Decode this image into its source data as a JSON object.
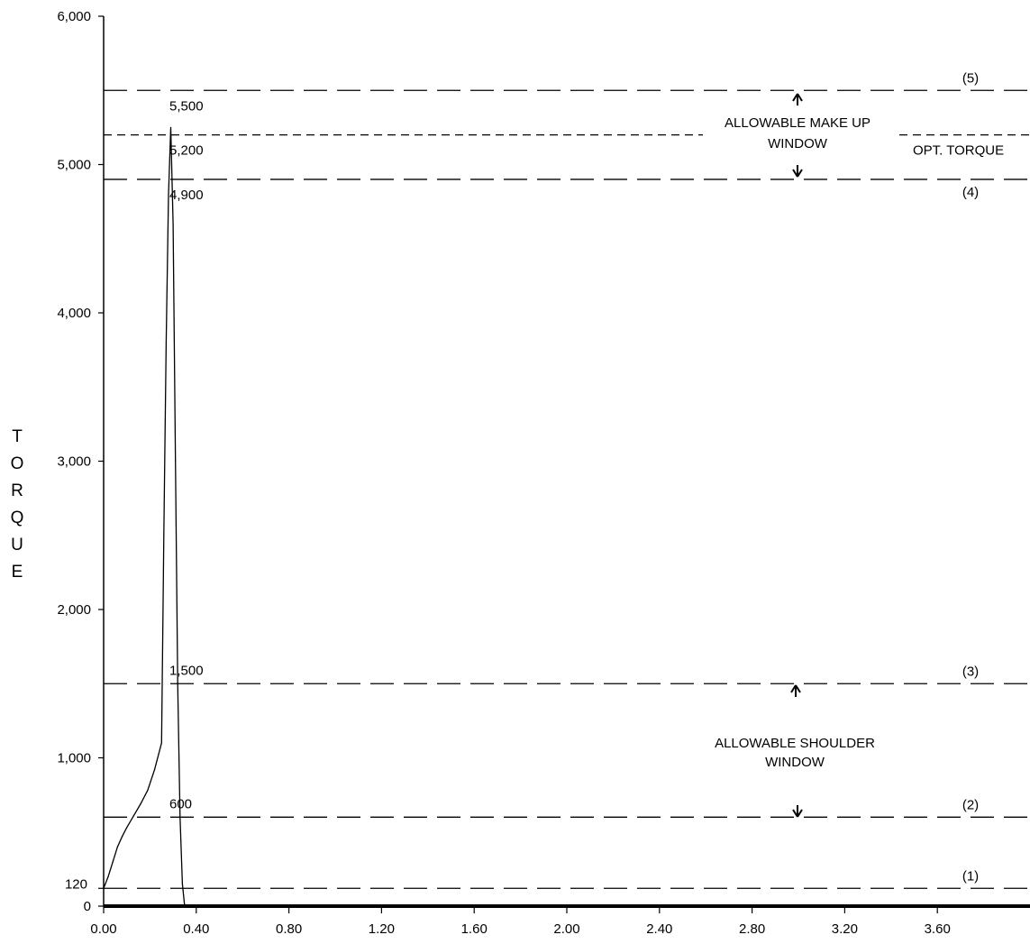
{
  "chart_data": {
    "type": "line",
    "ylabel_letters": [
      "T",
      "O",
      "R",
      "Q",
      "U",
      "E"
    ],
    "xlim": [
      0,
      4.0
    ],
    "ylim": [
      0,
      6000
    ],
    "x_ticks": [
      "0.00",
      "0.40",
      "0.80",
      "1.20",
      "1.60",
      "2.00",
      "2.40",
      "2.80",
      "3.20",
      "3.60"
    ],
    "y_ticks": [
      "6,000",
      "5,000",
      "4,000",
      "3,000",
      "2,000",
      "1,000",
      "0"
    ],
    "extra_y_tick": "120",
    "grid": false,
    "series": [
      {
        "x": [
          0.0,
          0.02,
          0.04,
          0.06,
          0.08,
          0.1,
          0.13,
          0.16,
          0.19,
          0.22,
          0.25,
          0.26,
          0.27,
          0.28,
          0.29,
          0.3,
          0.31,
          0.32,
          0.33,
          0.34,
          0.35
        ],
        "y": [
          120,
          200,
          300,
          400,
          470,
          530,
          610,
          690,
          780,
          920,
          1100,
          2500,
          3800,
          4800,
          5250,
          4600,
          3000,
          1500,
          600,
          150,
          0
        ]
      }
    ],
    "reference_lines": [
      {
        "label": "(5)",
        "value": 5500,
        "value_label": "5,500",
        "style": "long-dash"
      },
      {
        "label": "OPT. TORQUE",
        "value": 5200,
        "value_label": "5,200",
        "style": "short-dash"
      },
      {
        "label": "(4)",
        "value": 4900,
        "value_label": "4,900",
        "style": "long-dash"
      },
      {
        "label": "(3)",
        "value": 1500,
        "value_label": "1,500",
        "style": "long-dash"
      },
      {
        "label": "(2)",
        "value": 600,
        "value_label": "600",
        "style": "long-dash"
      },
      {
        "label": "(1)",
        "value": 120,
        "value_label": "",
        "style": "long-dash"
      }
    ],
    "annotations": [
      {
        "id": "makeup",
        "lines": [
          "ALLOWABLE MAKE UP",
          "WINDOW"
        ]
      },
      {
        "id": "shoulder",
        "lines": [
          "ALLOWABLE  SHOULDER",
          "WINDOW"
        ]
      }
    ]
  }
}
